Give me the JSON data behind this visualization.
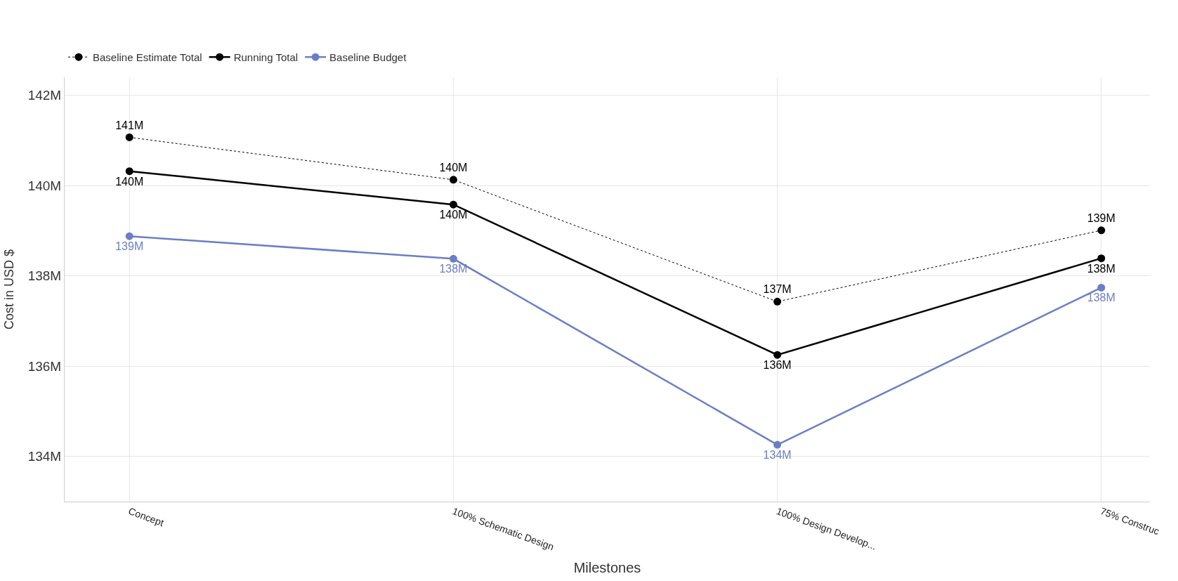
{
  "chart_data": {
    "type": "line",
    "xlabel": "Milestones",
    "ylabel": "Cost in USD $",
    "categories": [
      "Concept",
      "100% Schematic Design",
      "100% Design Develop...",
      "75% Construc"
    ],
    "series": [
      {
        "name": "Baseline Estimate Total",
        "color": "#000000",
        "line_style": "dotted",
        "values": [
          141.07,
          140.13,
          137.43,
          139.01
        ],
        "value_labels": [
          "141M",
          "140M",
          "137M",
          "139M"
        ]
      },
      {
        "name": "Running Total",
        "color": "#000000",
        "line_style": "solid",
        "values": [
          140.32,
          139.58,
          136.25,
          138.39
        ],
        "value_labels": [
          "140M",
          "140M",
          "136M",
          "138M"
        ]
      },
      {
        "name": "Baseline Budget",
        "color": "#6b7fc4",
        "line_style": "solid",
        "values": [
          138.88,
          138.38,
          134.26,
          137.74
        ],
        "value_labels": [
          "139M",
          "138M",
          "134M",
          "138M"
        ]
      }
    ],
    "ylim": [
      133,
      142.4
    ],
    "yticks": [
      {
        "value": 134,
        "label": "134M"
      },
      {
        "value": 136,
        "label": "136M"
      },
      {
        "value": 138,
        "label": "138M"
      },
      {
        "value": 140,
        "label": "140M"
      },
      {
        "value": 142,
        "label": "142M"
      }
    ],
    "grid": true,
    "legend": "top left",
    "marker": "circle"
  }
}
